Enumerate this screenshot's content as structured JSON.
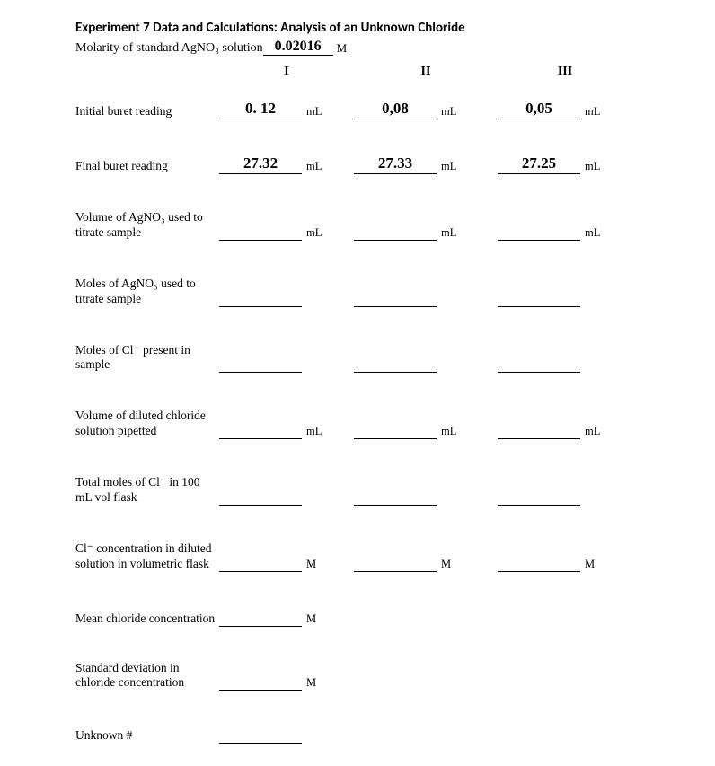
{
  "title": "Experiment 7 Data and Calculations: Analysis of an Unknown Chloride",
  "molarity": {
    "label": "Molarity of standard AgNO₃ solution",
    "value": "0.02016",
    "unit": "M"
  },
  "columns": {
    "c1": "I",
    "c2": "II",
    "c3": "III"
  },
  "rows": {
    "initial": {
      "label": "Initial buret reading",
      "v1": "0. 12",
      "v2": "0,08",
      "v3": "0,05",
      "unit": "mL"
    },
    "final": {
      "label": "Final buret reading",
      "v1": "27.32",
      "v2": "27.33",
      "v3": "27.25",
      "unit": "mL"
    },
    "volAgNO3": {
      "label": "Volume of AgNO₃ used to titrate sample",
      "v1": "",
      "v2": "",
      "v3": "",
      "unit": "mL"
    },
    "molesAgNO3": {
      "label": "Moles of AgNO₃ used to titrate sample",
      "v1": "",
      "v2": "",
      "v3": "",
      "unit": ""
    },
    "molesCl": {
      "label": "Moles of Cl⁻ present in sample",
      "v1": "",
      "v2": "",
      "v3": "",
      "unit": ""
    },
    "volPipetted": {
      "label": "Volume of diluted chloride solution pipetted",
      "v1": "",
      "v2": "",
      "v3": "",
      "unit": "mL"
    },
    "totalMolesCl": {
      "label": "Total moles of Cl⁻ in 100 mL vol flask",
      "v1": "",
      "v2": "",
      "v3": "",
      "unit": ""
    },
    "clConc": {
      "label": "Cl⁻ concentration in diluted solution in volumetric flask",
      "v1": "",
      "v2": "",
      "v3": "",
      "unit": "M"
    },
    "mean": {
      "label": "Mean chloride concentration",
      "v1": "",
      "unit": "M"
    },
    "stddev": {
      "label": "Standard deviation in chloride concentration",
      "v1": "",
      "unit": "M"
    },
    "unknown": {
      "label": "Unknown #",
      "v1": "",
      "unit": ""
    }
  }
}
